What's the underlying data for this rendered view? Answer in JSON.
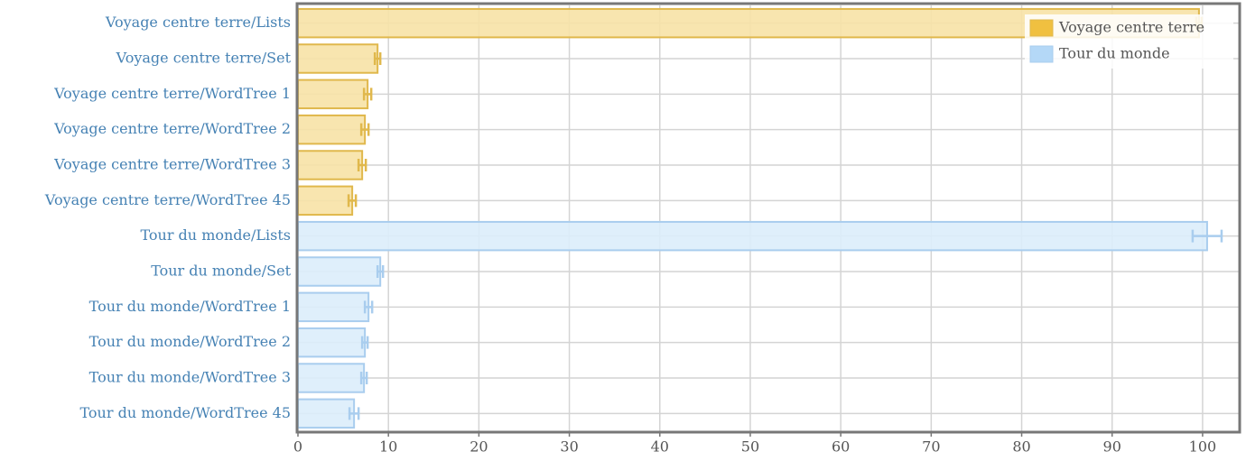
{
  "chart_data": {
    "type": "bar",
    "orientation": "horizontal",
    "categories": [
      "Voyage centre terre/Lists",
      "Voyage centre terre/Set",
      "Voyage centre terre/WordTree 1",
      "Voyage centre terre/WordTree 2",
      "Voyage centre terre/WordTree 3",
      "Voyage centre terre/WordTree 45",
      "Tour du monde/Lists",
      "Tour du monde/Set",
      "Tour du monde/WordTree 1",
      "Tour du monde/WordTree 2",
      "Tour du monde/WordTree 3",
      "Tour du monde/WordTree 45"
    ],
    "series": [
      {
        "name": "Voyage centre terre",
        "color": "#f0c040",
        "values": [
          99.6,
          8.8,
          7.7,
          7.4,
          7.1,
          6.0,
          null,
          null,
          null,
          null,
          null,
          null
        ],
        "errors": [
          0.3,
          0.3,
          0.4,
          0.4,
          0.4,
          0.4,
          null,
          null,
          null,
          null,
          null,
          null
        ]
      },
      {
        "name": "Tour du monde",
        "color": "#b4d8f7",
        "values": [
          null,
          null,
          null,
          null,
          null,
          null,
          100.5,
          9.1,
          7.8,
          7.4,
          7.3,
          6.2
        ],
        "errors": [
          null,
          null,
          null,
          null,
          null,
          null,
          1.6,
          0.3,
          0.4,
          0.3,
          0.3,
          0.5
        ]
      }
    ],
    "xlim": [
      0,
      104
    ],
    "xticks": [
      0,
      10,
      20,
      30,
      40,
      50,
      60,
      70,
      80,
      90,
      100
    ],
    "grid": true,
    "legend": "top-right"
  }
}
